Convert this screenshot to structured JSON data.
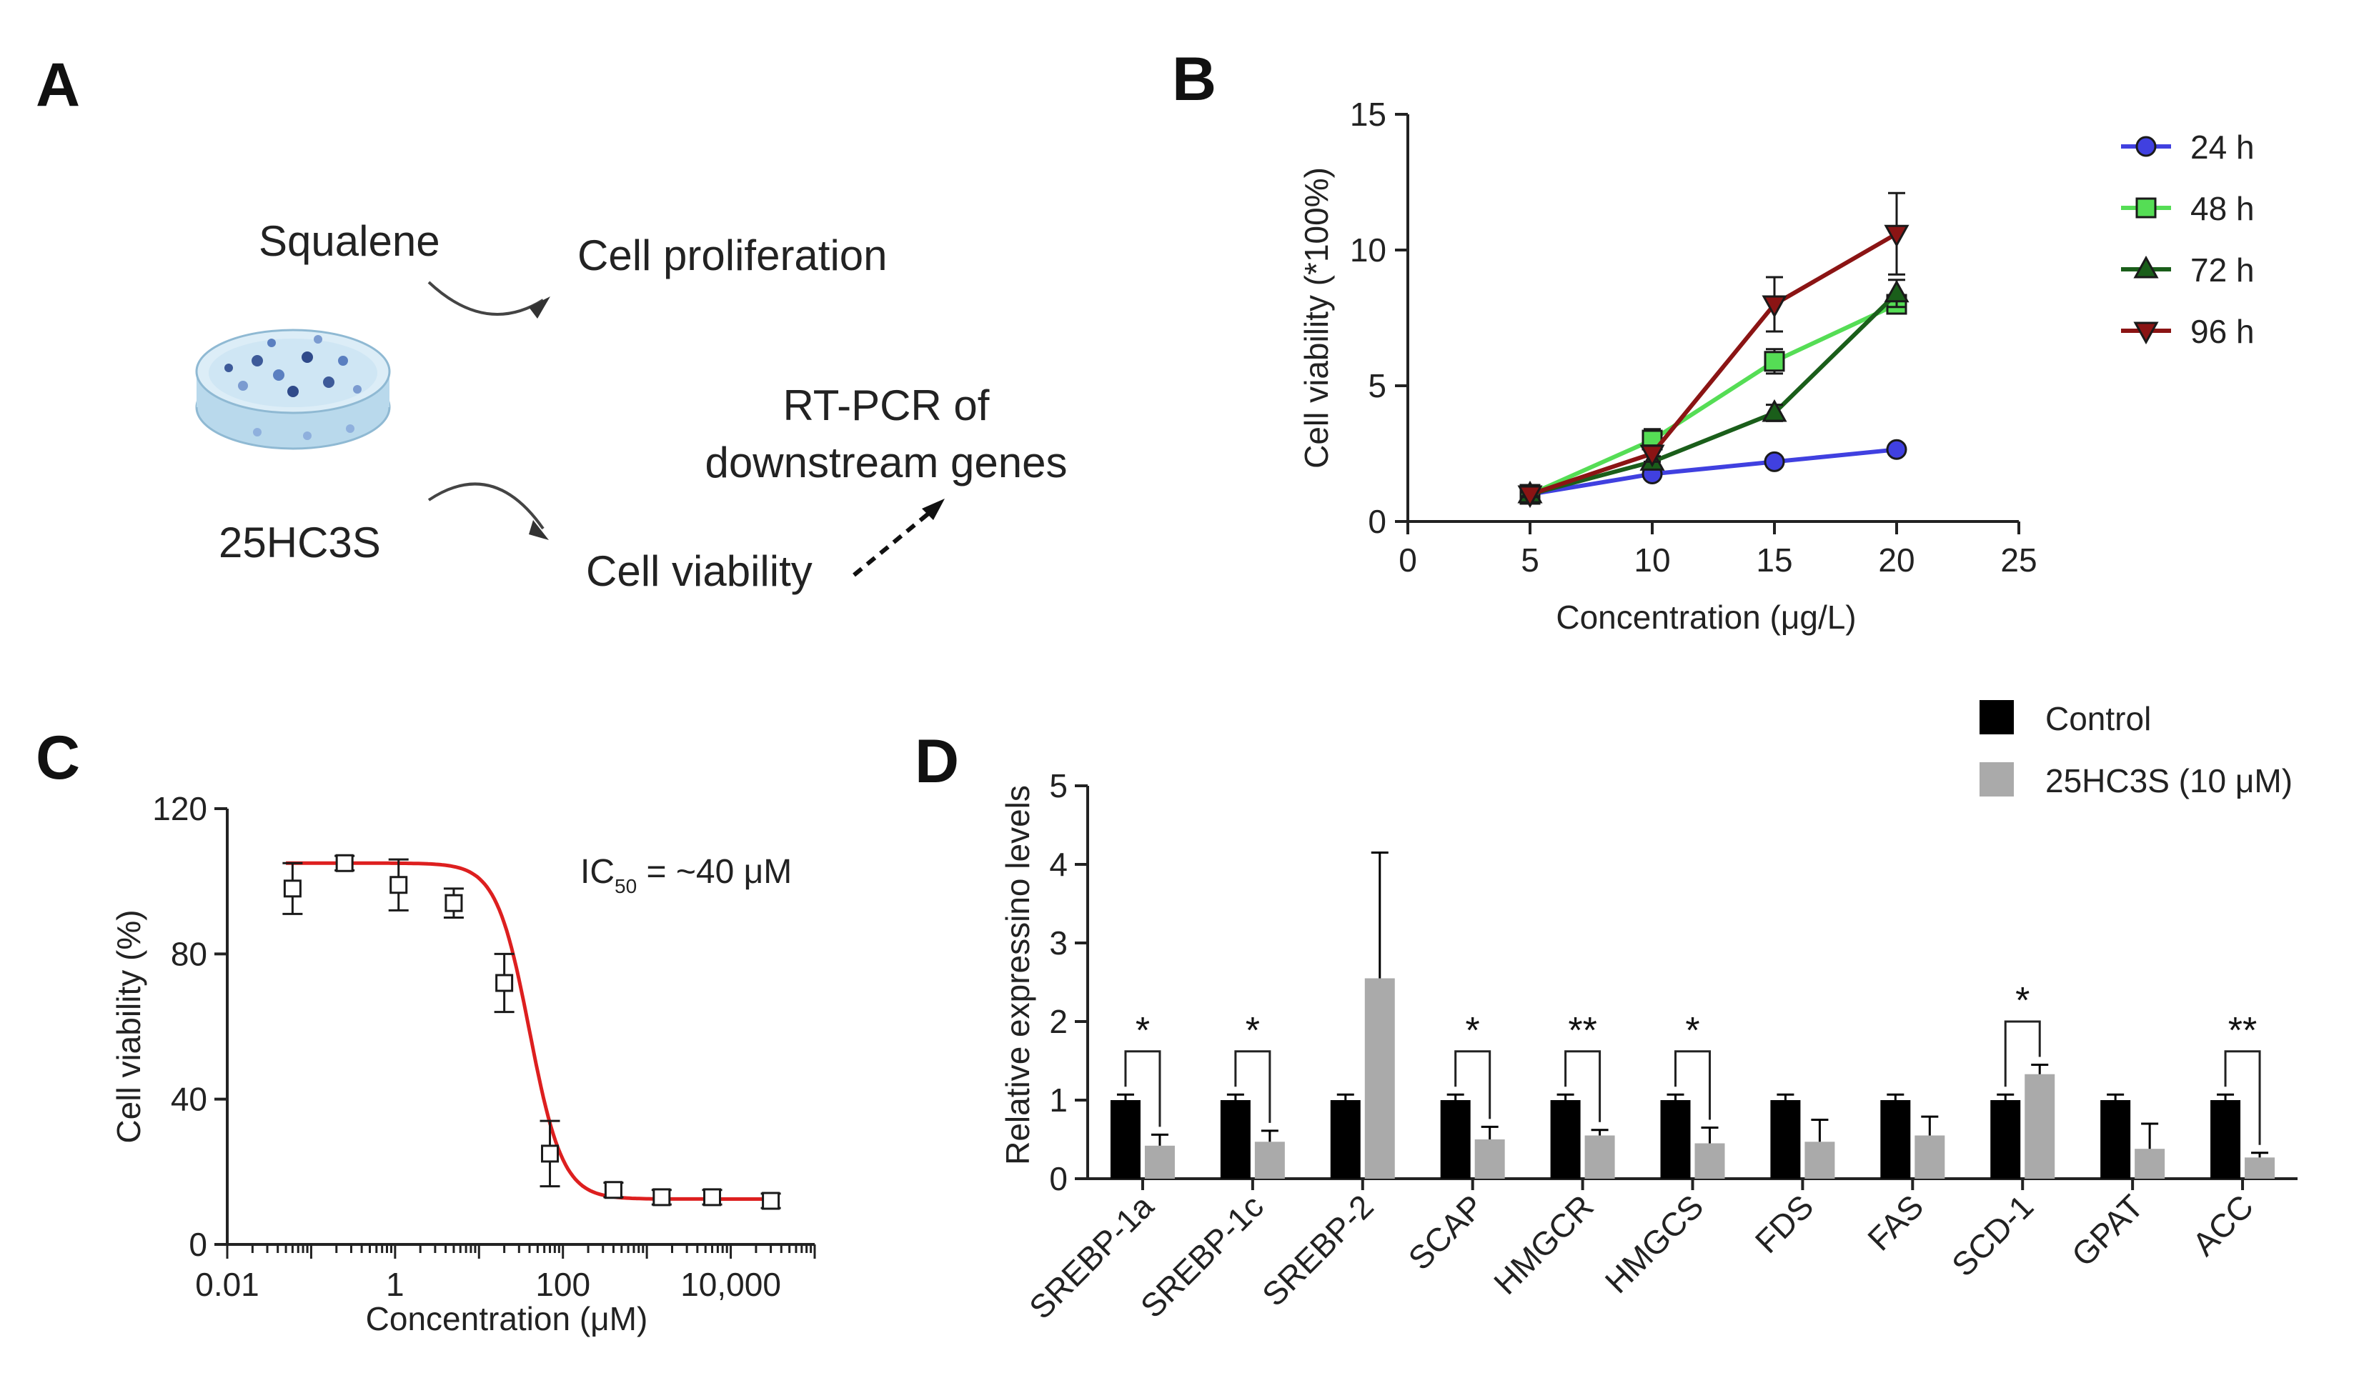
{
  "panels": {
    "a": "A",
    "b": "B",
    "c": "C",
    "d": "D"
  },
  "schematic": {
    "squalene": "Squalene",
    "hc3s": "25HC3S",
    "proliferation": "Cell proliferation",
    "viability": "Cell viability",
    "rtpcr_line1": "RT-PCR of",
    "rtpcr_line2": "downstream genes"
  },
  "colors": {
    "red_fit": "#dd1f1f",
    "black_bar": "#000000",
    "gray_bar": "#aaaaaa",
    "s24": "#4040e0",
    "s48": "#55dd55",
    "s72": "#1a5e1a",
    "s96": "#8b1414"
  },
  "chart_data": [
    {
      "type": "line",
      "title": "",
      "xlabel": "Concentration (μg/L)",
      "ylabel": "Cell viability (*100%)",
      "xlim": [
        0,
        25
      ],
      "ylim": [
        0,
        15
      ],
      "xticks": [
        "0",
        "5",
        "10",
        "15",
        "20",
        "25"
      ],
      "yticks": [
        "0",
        "5",
        "10",
        "15"
      ],
      "legend_position": "top-right",
      "x": [
        5,
        10,
        15,
        20
      ],
      "series": [
        {
          "name": "24 h",
          "marker": "circle",
          "color": "#4040e0",
          "values": [
            1.0,
            1.75,
            2.2,
            2.65
          ],
          "errors": [
            0.1,
            0.1,
            0.1,
            0.1
          ]
        },
        {
          "name": "48 h",
          "marker": "square",
          "color": "#55dd55",
          "values": [
            1.0,
            3.0,
            5.9,
            8.0
          ],
          "errors": [
            0.15,
            0.4,
            0.45,
            0.3
          ]
        },
        {
          "name": "72 h",
          "marker": "triangle-up",
          "color": "#1a5e1a",
          "values": [
            1.0,
            2.2,
            4.0,
            8.4
          ],
          "errors": [
            0.1,
            0.2,
            0.3,
            0.5
          ]
        },
        {
          "name": "96 h",
          "marker": "triangle-down",
          "color": "#8b1414",
          "values": [
            1.0,
            2.5,
            8.0,
            10.6
          ],
          "errors": [
            0.1,
            0.3,
            1.0,
            1.5
          ]
        }
      ]
    },
    {
      "type": "scatter",
      "title": "",
      "xlabel": "Concentration (μM)",
      "ylabel": "Cell viability (%)",
      "xscale": "log",
      "xlim": [
        0.01,
        100000
      ],
      "ylim": [
        0,
        120
      ],
      "xticks": [
        "0.01",
        "1",
        "100",
        "10,000"
      ],
      "yticks": [
        "0",
        "40",
        "80",
        "120"
      ],
      "annotation": {
        "prefix": "IC",
        "sub": "50",
        "suffix": " = ~40 μM"
      },
      "x": [
        0.06,
        0.25,
        1.1,
        5,
        20,
        70,
        400,
        1500,
        6000,
        30000
      ],
      "values": [
        98,
        105,
        99,
        94,
        72,
        25,
        15,
        13,
        13,
        12
      ],
      "errors": [
        7,
        2,
        7,
        4,
        8,
        9,
        2,
        2,
        2,
        2
      ],
      "fit": {
        "top": 105,
        "bottom": 12.5,
        "ic50": 40,
        "hill": 2.2
      }
    },
    {
      "type": "bar",
      "title": "",
      "xlabel": "",
      "ylabel": "Relative expressino levels",
      "ylim": [
        0,
        5
      ],
      "yticks": [
        "0",
        "1",
        "2",
        "3",
        "4",
        "5"
      ],
      "legend_position": "top-right",
      "categories": [
        "SREBP-1a",
        "SREBP-1c",
        "SREBP-2",
        "SCAP",
        "HMGCR",
        "HMGCS",
        "FDS",
        "FAS",
        "SCD-1",
        "GPAT",
        "ACC"
      ],
      "series": [
        {
          "name": "Control",
          "color": "#000000",
          "values": [
            1,
            1,
            1,
            1,
            1,
            1,
            1,
            1,
            1,
            1,
            1
          ],
          "errors": [
            0.07,
            0.07,
            0.07,
            0.07,
            0.07,
            0.07,
            0.07,
            0.07,
            0.07,
            0.07,
            0.07
          ]
        },
        {
          "name": "25HC3S (10 μM)",
          "color": "#aaaaaa",
          "values": [
            0.42,
            0.47,
            2.55,
            0.5,
            0.55,
            0.45,
            0.47,
            0.55,
            1.33,
            0.38,
            0.27
          ],
          "errors": [
            0.14,
            0.14,
            1.6,
            0.16,
            0.07,
            0.2,
            0.28,
            0.24,
            0.12,
            0.32,
            0.06
          ]
        }
      ],
      "significance": [
        "*",
        "*",
        "",
        "*",
        "**",
        "*",
        "",
        "",
        "*",
        "",
        "**"
      ]
    }
  ]
}
